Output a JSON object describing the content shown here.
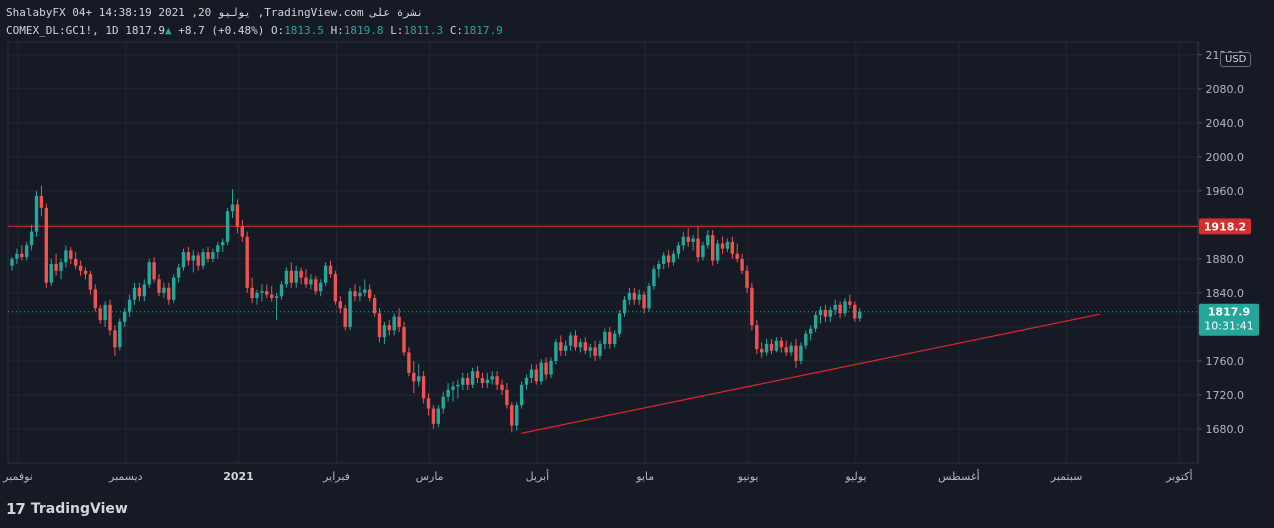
{
  "header": {
    "line1": "ShalabyFX 04+ 14:38:19 2021 ,20 يوليو ,TradingView.com نشرة على",
    "symbol": "COMEX_DL:GC1!, 1D",
    "last": "1817.9",
    "up_icon": "▲",
    "change": "+8.7 (+0.48%)",
    "o_label": "O:",
    "o": "1813.5",
    "h_label": "H:",
    "h": "1819.8",
    "l_label": "L:",
    "l": "1811.3",
    "c_label": "C:",
    "c": "1817.9"
  },
  "currency": "USD",
  "price_labels": {
    "resistance": "1918.2",
    "current": "1817.9",
    "countdown": "10:31:41"
  },
  "footer": {
    "logo_mark": "17",
    "brand": "TradingView"
  },
  "colors": {
    "bg": "#161a25",
    "grid": "#232734",
    "up": "#26a69a",
    "down": "#ef5350",
    "resistance": "#d32f2f",
    "trend": "#e0252b",
    "axis_text": "#b2b5be"
  },
  "chart_data": {
    "type": "candlestick",
    "ylim": [
      1640,
      2135
    ],
    "y_ticks": [
      "2120.0",
      "2080.0",
      "2040.0",
      "2000.0",
      "1960.0",
      "1920.0",
      "1880.0",
      "1840.0",
      "1800.0",
      "1760.0",
      "1720.0",
      "1680.0"
    ],
    "x_labels": [
      "نوفمبر",
      "ديسمبر",
      "2021",
      "فبراير",
      "مارس",
      "أبريل",
      "مايو",
      "يونيو",
      "يوليو",
      "أغسطس",
      "سبتمبر",
      "أكتوبر"
    ],
    "x_label_index": [
      0,
      22,
      45,
      65,
      84,
      106,
      128,
      149,
      171,
      192,
      214,
      237
    ],
    "bold_labels": [
      "2021"
    ],
    "resistance": 1918.2,
    "current": 1817.9,
    "trendline": {
      "from_index": 104,
      "from_value": 1675,
      "to_index": 222,
      "to_value": 1815
    },
    "candles": [
      [
        1872,
        1882,
        1866,
        1880
      ],
      [
        1880,
        1892,
        1874,
        1886
      ],
      [
        1886,
        1896,
        1878,
        1882
      ],
      [
        1882,
        1900,
        1878,
        1896
      ],
      [
        1896,
        1920,
        1890,
        1912
      ],
      [
        1912,
        1960,
        1906,
        1954
      ],
      [
        1954,
        1966,
        1930,
        1940
      ],
      [
        1940,
        1945,
        1846,
        1852
      ],
      [
        1852,
        1880,
        1848,
        1874
      ],
      [
        1874,
        1886,
        1860,
        1866
      ],
      [
        1866,
        1880,
        1856,
        1876
      ],
      [
        1876,
        1896,
        1870,
        1890
      ],
      [
        1890,
        1894,
        1874,
        1880
      ],
      [
        1880,
        1888,
        1868,
        1872
      ],
      [
        1872,
        1878,
        1860,
        1866
      ],
      [
        1866,
        1870,
        1856,
        1862
      ],
      [
        1862,
        1866,
        1838,
        1844
      ],
      [
        1844,
        1850,
        1818,
        1822
      ],
      [
        1822,
        1826,
        1804,
        1808
      ],
      [
        1808,
        1830,
        1800,
        1826
      ],
      [
        1826,
        1832,
        1790,
        1796
      ],
      [
        1796,
        1802,
        1766,
        1776
      ],
      [
        1776,
        1810,
        1772,
        1806
      ],
      [
        1806,
        1822,
        1800,
        1818
      ],
      [
        1818,
        1838,
        1812,
        1832
      ],
      [
        1832,
        1852,
        1826,
        1846
      ],
      [
        1846,
        1852,
        1830,
        1836
      ],
      [
        1836,
        1856,
        1830,
        1850
      ],
      [
        1850,
        1880,
        1846,
        1876
      ],
      [
        1876,
        1882,
        1852,
        1856
      ],
      [
        1856,
        1862,
        1836,
        1840
      ],
      [
        1840,
        1852,
        1834,
        1846
      ],
      [
        1846,
        1852,
        1826,
        1832
      ],
      [
        1832,
        1862,
        1828,
        1858
      ],
      [
        1858,
        1874,
        1852,
        1870
      ],
      [
        1870,
        1892,
        1866,
        1888
      ],
      [
        1888,
        1894,
        1872,
        1878
      ],
      [
        1878,
        1890,
        1864,
        1884
      ],
      [
        1884,
        1888,
        1866,
        1872
      ],
      [
        1872,
        1892,
        1868,
        1888
      ],
      [
        1888,
        1894,
        1876,
        1880
      ],
      [
        1880,
        1892,
        1876,
        1888
      ],
      [
        1888,
        1900,
        1880,
        1896
      ],
      [
        1896,
        1904,
        1888,
        1900
      ],
      [
        1900,
        1940,
        1896,
        1936
      ],
      [
        1936,
        1962,
        1928,
        1944
      ],
      [
        1944,
        1950,
        1910,
        1918
      ],
      [
        1918,
        1926,
        1900,
        1906
      ],
      [
        1906,
        1912,
        1840,
        1846
      ],
      [
        1846,
        1858,
        1828,
        1834
      ],
      [
        1834,
        1844,
        1826,
        1840
      ],
      [
        1840,
        1850,
        1830,
        1842
      ],
      [
        1842,
        1850,
        1834,
        1838
      ],
      [
        1838,
        1848,
        1830,
        1834
      ],
      [
        1834,
        1840,
        1808,
        1836
      ],
      [
        1836,
        1854,
        1832,
        1850
      ],
      [
        1850,
        1870,
        1846,
        1866
      ],
      [
        1866,
        1876,
        1846,
        1852
      ],
      [
        1852,
        1872,
        1846,
        1866
      ],
      [
        1866,
        1870,
        1850,
        1858
      ],
      [
        1858,
        1868,
        1846,
        1850
      ],
      [
        1850,
        1862,
        1844,
        1856
      ],
      [
        1856,
        1860,
        1838,
        1842
      ],
      [
        1842,
        1856,
        1836,
        1852
      ],
      [
        1852,
        1876,
        1848,
        1872
      ],
      [
        1872,
        1878,
        1858,
        1862
      ],
      [
        1862,
        1866,
        1826,
        1830
      ],
      [
        1830,
        1836,
        1816,
        1822
      ],
      [
        1822,
        1826,
        1796,
        1800
      ],
      [
        1800,
        1846,
        1796,
        1842
      ],
      [
        1842,
        1850,
        1830,
        1836
      ],
      [
        1836,
        1848,
        1830,
        1840
      ],
      [
        1840,
        1856,
        1836,
        1844
      ],
      [
        1844,
        1850,
        1830,
        1834
      ],
      [
        1834,
        1838,
        1812,
        1816
      ],
      [
        1816,
        1822,
        1782,
        1788
      ],
      [
        1788,
        1806,
        1780,
        1802
      ],
      [
        1802,
        1808,
        1790,
        1796
      ],
      [
        1796,
        1816,
        1790,
        1812
      ],
      [
        1812,
        1822,
        1794,
        1800
      ],
      [
        1800,
        1806,
        1766,
        1770
      ],
      [
        1770,
        1776,
        1742,
        1746
      ],
      [
        1746,
        1760,
        1722,
        1736
      ],
      [
        1736,
        1756,
        1730,
        1742
      ],
      [
        1742,
        1748,
        1710,
        1716
      ],
      [
        1716,
        1722,
        1696,
        1704
      ],
      [
        1704,
        1708,
        1680,
        1686
      ],
      [
        1686,
        1708,
        1682,
        1704
      ],
      [
        1704,
        1724,
        1698,
        1718
      ],
      [
        1718,
        1734,
        1712,
        1726
      ],
      [
        1726,
        1736,
        1712,
        1730
      ],
      [
        1730,
        1738,
        1716,
        1732
      ],
      [
        1732,
        1746,
        1726,
        1740
      ],
      [
        1740,
        1746,
        1726,
        1732
      ],
      [
        1732,
        1752,
        1728,
        1748
      ],
      [
        1748,
        1754,
        1734,
        1740
      ],
      [
        1740,
        1746,
        1728,
        1734
      ],
      [
        1734,
        1746,
        1728,
        1738
      ],
      [
        1738,
        1748,
        1732,
        1742
      ],
      [
        1742,
        1748,
        1726,
        1732
      ],
      [
        1732,
        1738,
        1720,
        1726
      ],
      [
        1726,
        1734,
        1704,
        1708
      ],
      [
        1708,
        1712,
        1676,
        1684
      ],
      [
        1684,
        1712,
        1678,
        1708
      ],
      [
        1708,
        1736,
        1704,
        1732
      ],
      [
        1732,
        1744,
        1726,
        1740
      ],
      [
        1740,
        1756,
        1734,
        1750
      ],
      [
        1750,
        1756,
        1732,
        1736
      ],
      [
        1736,
        1762,
        1732,
        1758
      ],
      [
        1758,
        1764,
        1738,
        1744
      ],
      [
        1744,
        1764,
        1740,
        1760
      ],
      [
        1760,
        1786,
        1756,
        1782
      ],
      [
        1782,
        1790,
        1766,
        1772
      ],
      [
        1772,
        1784,
        1766,
        1778
      ],
      [
        1778,
        1794,
        1772,
        1790
      ],
      [
        1790,
        1796,
        1772,
        1776
      ],
      [
        1776,
        1786,
        1770,
        1782
      ],
      [
        1782,
        1788,
        1768,
        1772
      ],
      [
        1772,
        1780,
        1764,
        1776
      ],
      [
        1776,
        1784,
        1760,
        1766
      ],
      [
        1766,
        1784,
        1762,
        1780
      ],
      [
        1780,
        1798,
        1774,
        1794
      ],
      [
        1794,
        1800,
        1774,
        1780
      ],
      [
        1780,
        1796,
        1776,
        1792
      ],
      [
        1792,
        1820,
        1788,
        1816
      ],
      [
        1816,
        1836,
        1812,
        1832
      ],
      [
        1832,
        1846,
        1826,
        1840
      ],
      [
        1840,
        1846,
        1826,
        1832
      ],
      [
        1832,
        1844,
        1826,
        1838
      ],
      [
        1838,
        1842,
        1816,
        1822
      ],
      [
        1822,
        1852,
        1818,
        1848
      ],
      [
        1848,
        1872,
        1844,
        1868
      ],
      [
        1868,
        1878,
        1858,
        1874
      ],
      [
        1874,
        1888,
        1868,
        1884
      ],
      [
        1884,
        1890,
        1870,
        1876
      ],
      [
        1876,
        1890,
        1872,
        1886
      ],
      [
        1886,
        1900,
        1880,
        1896
      ],
      [
        1896,
        1912,
        1890,
        1906
      ],
      [
        1906,
        1916,
        1894,
        1900
      ],
      [
        1900,
        1908,
        1890,
        1904
      ],
      [
        1904,
        1918,
        1876,
        1882
      ],
      [
        1882,
        1900,
        1878,
        1896
      ],
      [
        1896,
        1914,
        1892,
        1908
      ],
      [
        1908,
        1914,
        1872,
        1878
      ],
      [
        1878,
        1902,
        1874,
        1898
      ],
      [
        1898,
        1906,
        1886,
        1892
      ],
      [
        1892,
        1904,
        1888,
        1900
      ],
      [
        1900,
        1906,
        1880,
        1886
      ],
      [
        1886,
        1898,
        1876,
        1880
      ],
      [
        1880,
        1886,
        1862,
        1866
      ],
      [
        1866,
        1872,
        1840,
        1846
      ],
      [
        1846,
        1852,
        1796,
        1802
      ],
      [
        1802,
        1808,
        1768,
        1774
      ],
      [
        1774,
        1782,
        1764,
        1770
      ],
      [
        1770,
        1786,
        1766,
        1780
      ],
      [
        1780,
        1786,
        1768,
        1772
      ],
      [
        1772,
        1788,
        1770,
        1784
      ],
      [
        1784,
        1788,
        1770,
        1776
      ],
      [
        1776,
        1784,
        1766,
        1770
      ],
      [
        1770,
        1782,
        1766,
        1778
      ],
      [
        1778,
        1786,
        1752,
        1760
      ],
      [
        1760,
        1782,
        1756,
        1778
      ],
      [
        1778,
        1796,
        1774,
        1792
      ],
      [
        1792,
        1802,
        1784,
        1798
      ],
      [
        1798,
        1818,
        1794,
        1814
      ],
      [
        1814,
        1824,
        1804,
        1820
      ],
      [
        1820,
        1826,
        1806,
        1812
      ],
      [
        1812,
        1824,
        1806,
        1820
      ],
      [
        1820,
        1832,
        1814,
        1826
      ],
      [
        1826,
        1830,
        1810,
        1816
      ],
      [
        1816,
        1834,
        1812,
        1830
      ],
      [
        1830,
        1838,
        1822,
        1826
      ],
      [
        1826,
        1830,
        1806,
        1810
      ],
      [
        1810,
        1822,
        1806,
        1818
      ]
    ]
  }
}
